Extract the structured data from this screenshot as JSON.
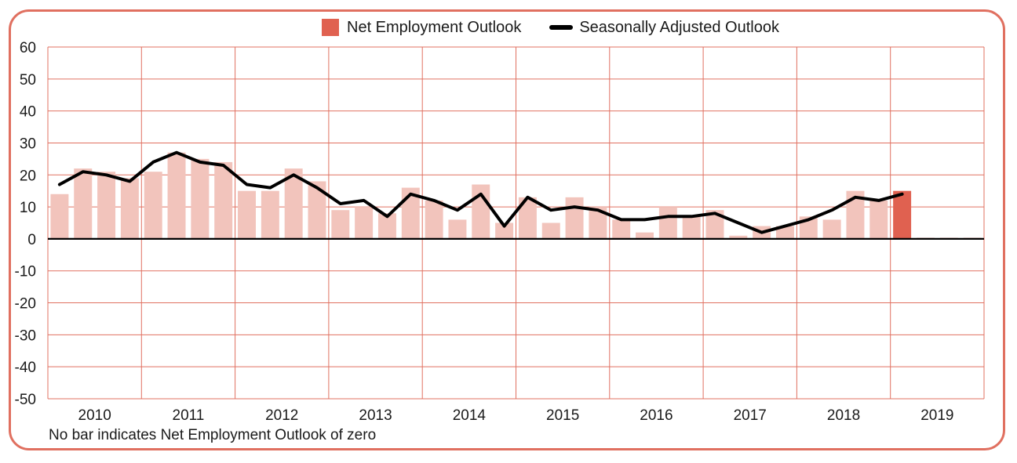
{
  "chart_data": {
    "type": "bar",
    "colors": {
      "bar_past": "#f2c4bc",
      "bar_current": "#e06150",
      "grid": "#e07060",
      "line": "#000000"
    },
    "legend": [
      {
        "label": "Net Employment Outlook",
        "kind": "bar"
      },
      {
        "label": "Seasonally Adjusted Outlook",
        "kind": "line"
      }
    ],
    "legend_placement": "top-center",
    "ylim": [
      -50,
      60
    ],
    "yticks": [
      "60",
      "50",
      "40",
      "30",
      "20",
      "10",
      "0",
      "-10",
      "-20",
      "-30",
      "-40",
      "-50"
    ],
    "years": [
      "2010",
      "2011",
      "2012",
      "2013",
      "2014",
      "2015",
      "2016",
      "2017",
      "2018",
      "2019"
    ],
    "quarters_per_year": 4,
    "series": [
      {
        "name": "Net Employment Outlook",
        "type": "bar",
        "values": [
          14,
          22,
          21,
          19,
          21,
          27,
          25,
          24,
          15,
          15,
          22,
          18,
          9,
          10,
          8,
          16,
          12,
          6,
          17,
          5,
          13,
          5,
          13,
          10,
          6,
          2,
          10,
          7,
          9,
          1,
          4,
          4,
          7,
          6,
          15,
          12,
          15,
          0,
          0,
          0
        ],
        "highlight_index": 36
      },
      {
        "name": "Seasonally Adjusted Outlook",
        "type": "line",
        "values": [
          17,
          21,
          20,
          18,
          24,
          27,
          24,
          23,
          17,
          16,
          20,
          16,
          11,
          12,
          7,
          14,
          12,
          9,
          14,
          4,
          13,
          9,
          10,
          9,
          6,
          6,
          7,
          7,
          8,
          5,
          2,
          4,
          6,
          9,
          13,
          12,
          14
        ]
      }
    ],
    "grid": true,
    "footnote": "No bar indicates Net Employment Outlook of zero"
  }
}
